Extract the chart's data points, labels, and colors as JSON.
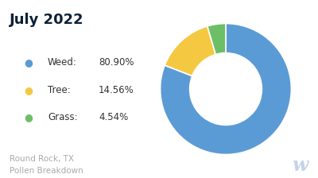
{
  "title": "July 2022",
  "title_color": "#0d2137",
  "title_fontsize": 13,
  "title_fontweight": "bold",
  "subtitle": "Round Rock, TX\nPollen Breakdown",
  "subtitle_color": "#aaaaaa",
  "subtitle_fontsize": 7.5,
  "watermark": "w",
  "watermark_color": "#c5d3e8",
  "labels": [
    "Weed",
    "Tree",
    "Grass"
  ],
  "values": [
    80.9,
    14.56,
    4.54
  ],
  "percentages": [
    "80.90%",
    "14.56%",
    "4.54%"
  ],
  "colors": [
    "#5b9bd5",
    "#f5c842",
    "#6dbf67"
  ],
  "background_color": "#ffffff",
  "legend_label_color": "#333333",
  "legend_fontsize": 8.5,
  "donut_width": 0.45,
  "startangle": 90
}
